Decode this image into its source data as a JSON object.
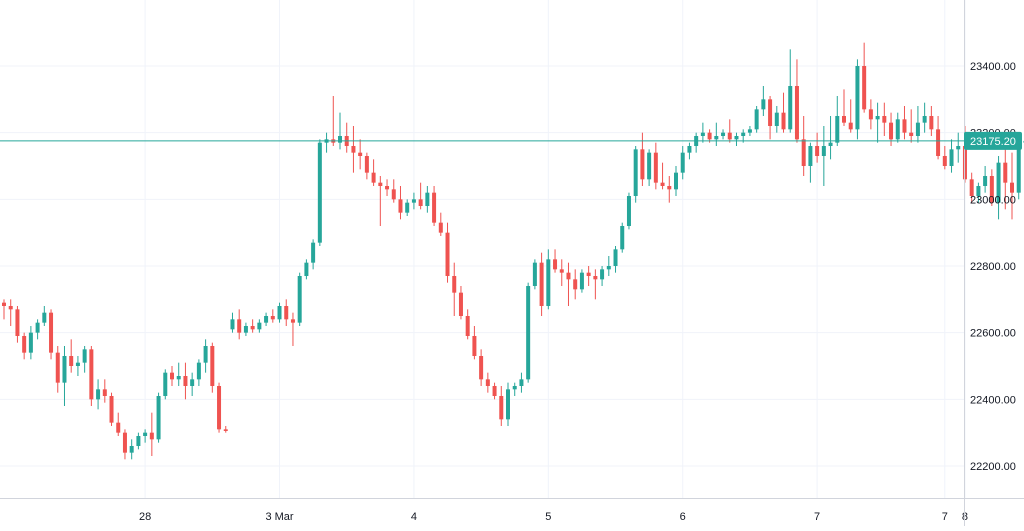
{
  "colors": {
    "up": "#26a69a",
    "down": "#ef5350",
    "grid": "#f0f3fa",
    "axis_text": "#131722",
    "price_line": "#26a69a",
    "badge_text": "#ffffff",
    "border": "#d1d4dc"
  },
  "chart_data": {
    "type": "candlestick",
    "title": "",
    "xlabel": "",
    "ylabel": "",
    "ylim": [
      22140,
      23540
    ],
    "y_ticks": [
      22200,
      22400,
      22600,
      22800,
      23000,
      23200,
      23400
    ],
    "y_tick_labels": [
      "22200.00",
      "22400.00",
      "22600.00",
      "22800.00",
      "23000.00",
      "23200.00",
      "23400.00"
    ],
    "x_tick_labels": [
      {
        "label": "28",
        "t": 21
      },
      {
        "label": "3 Mar",
        "t": 41
      },
      {
        "label": "4",
        "t": 61
      },
      {
        "label": "5",
        "t": 81
      },
      {
        "label": "6",
        "t": 101
      },
      {
        "label": "7",
        "t": 121
      },
      {
        "label": "7",
        "t": 140
      },
      {
        "label": "8",
        "t": 143
      }
    ],
    "last_price": 23175.2,
    "last_price_label": "23175.20",
    "grid": true,
    "candles": [
      [
        22690,
        22700,
        22640,
        22680
      ],
      [
        22680,
        22700,
        22620,
        22670
      ],
      [
        22670,
        22680,
        22570,
        22590
      ],
      [
        22590,
        22600,
        22520,
        22540
      ],
      [
        22540,
        22620,
        22520,
        22600
      ],
      [
        22600,
        22640,
        22580,
        22630
      ],
      [
        22630,
        22680,
        22620,
        22660
      ],
      [
        22660,
        22670,
        22520,
        22540
      ],
      [
        22540,
        22560,
        22420,
        22450
      ],
      [
        22450,
        22560,
        22380,
        22530
      ],
      [
        22530,
        22580,
        22480,
        22500
      ],
      [
        22500,
        22530,
        22470,
        22510
      ],
      [
        22510,
        22560,
        22480,
        22550
      ],
      [
        22550,
        22560,
        22380,
        22400
      ],
      [
        22400,
        22460,
        22370,
        22430
      ],
      [
        22430,
        22460,
        22390,
        22410
      ],
      [
        22410,
        22420,
        22320,
        22330
      ],
      [
        22330,
        22360,
        22290,
        22300
      ],
      [
        22300,
        22310,
        22220,
        22240
      ],
      [
        22240,
        22280,
        22220,
        22260
      ],
      [
        22260,
        22300,
        22250,
        22290
      ],
      [
        22290,
        22310,
        22270,
        22300
      ],
      [
        22300,
        22360,
        22230,
        22280
      ],
      [
        22280,
        22420,
        22270,
        22410
      ],
      [
        22410,
        22490,
        22400,
        22480
      ],
      [
        22480,
        22500,
        22440,
        22460
      ],
      [
        22460,
        22510,
        22440,
        22470
      ],
      [
        22470,
        22510,
        22400,
        22440
      ],
      [
        22440,
        22480,
        22410,
        22460
      ],
      [
        22460,
        22520,
        22440,
        22510
      ],
      [
        22510,
        22580,
        22480,
        22560
      ],
      [
        22560,
        22570,
        22420,
        22440
      ],
      [
        22440,
        22450,
        22300,
        22310
      ],
      [
        22310,
        22320,
        22300,
        22305
      ],
      [
        22610,
        22660,
        22600,
        22640
      ],
      [
        22640,
        22670,
        22580,
        22600
      ],
      [
        22600,
        22630,
        22590,
        22620
      ],
      [
        22620,
        22640,
        22600,
        22610
      ],
      [
        22610,
        22640,
        22600,
        22630
      ],
      [
        22630,
        22660,
        22620,
        22650
      ],
      [
        22650,
        22670,
        22630,
        22640
      ],
      [
        22640,
        22690,
        22630,
        22680
      ],
      [
        22680,
        22700,
        22620,
        22640
      ],
      [
        22640,
        22660,
        22560,
        22630
      ],
      [
        22630,
        22780,
        22620,
        22770
      ],
      [
        22770,
        22820,
        22760,
        22810
      ],
      [
        22810,
        22880,
        22790,
        22870
      ],
      [
        22870,
        23180,
        22860,
        23170
      ],
      [
        23170,
        23200,
        23140,
        23180
      ],
      [
        23180,
        23310,
        23160,
        23170
      ],
      [
        23170,
        23260,
        23150,
        23190
      ],
      [
        23190,
        23230,
        23140,
        23160
      ],
      [
        23160,
        23220,
        23080,
        23140
      ],
      [
        23140,
        23180,
        23090,
        23130
      ],
      [
        23130,
        23140,
        23060,
        23080
      ],
      [
        23080,
        23120,
        23040,
        23050
      ],
      [
        23050,
        23070,
        22920,
        23040
      ],
      [
        23040,
        23060,
        23010,
        23030
      ],
      [
        23030,
        23060,
        22990,
        23000
      ],
      [
        23000,
        23040,
        22940,
        22960
      ],
      [
        22960,
        23000,
        22950,
        22990
      ],
      [
        22990,
        23020,
        22970,
        23000
      ],
      [
        23000,
        23050,
        22970,
        22980
      ],
      [
        22980,
        23040,
        22960,
        23020
      ],
      [
        23020,
        23040,
        22920,
        22930
      ],
      [
        22930,
        22960,
        22890,
        22900
      ],
      [
        22900,
        22930,
        22750,
        22770
      ],
      [
        22770,
        22810,
        22650,
        22720
      ],
      [
        22720,
        22740,
        22640,
        22650
      ],
      [
        22650,
        22670,
        22580,
        22590
      ],
      [
        22590,
        22620,
        22520,
        22530
      ],
      [
        22530,
        22550,
        22440,
        22460
      ],
      [
        22460,
        22480,
        22420,
        22440
      ],
      [
        22440,
        22450,
        22400,
        22410
      ],
      [
        22410,
        22440,
        22320,
        22340
      ],
      [
        22340,
        22450,
        22320,
        22430
      ],
      [
        22430,
        22450,
        22410,
        22440
      ],
      [
        22440,
        22480,
        22420,
        22460
      ],
      [
        22460,
        22750,
        22450,
        22740
      ],
      [
        22740,
        22820,
        22730,
        22810
      ],
      [
        22810,
        22840,
        22650,
        22680
      ],
      [
        22680,
        22850,
        22670,
        22820
      ],
      [
        22820,
        22850,
        22780,
        22790
      ],
      [
        22790,
        22820,
        22740,
        22780
      ],
      [
        22780,
        22810,
        22680,
        22760
      ],
      [
        22760,
        22790,
        22700,
        22730
      ],
      [
        22730,
        22790,
        22720,
        22780
      ],
      [
        22780,
        22800,
        22740,
        22770
      ],
      [
        22770,
        22790,
        22700,
        22760
      ],
      [
        22760,
        22800,
        22740,
        22790
      ],
      [
        22790,
        22830,
        22770,
        22800
      ],
      [
        22800,
        22860,
        22780,
        22850
      ],
      [
        22850,
        22930,
        22840,
        22920
      ],
      [
        22920,
        23020,
        22910,
        23010
      ],
      [
        23010,
        23160,
        22990,
        23150
      ],
      [
        23150,
        23200,
        23040,
        23060
      ],
      [
        23060,
        23150,
        23040,
        23140
      ],
      [
        23140,
        23170,
        23030,
        23050
      ],
      [
        23050,
        23110,
        23030,
        23040
      ],
      [
        23040,
        23070,
        22990,
        23030
      ],
      [
        23030,
        23100,
        23010,
        23080
      ],
      [
        23080,
        23160,
        23060,
        23140
      ],
      [
        23140,
        23170,
        23120,
        23160
      ],
      [
        23160,
        23200,
        23140,
        23190
      ],
      [
        23190,
        23230,
        23170,
        23200
      ],
      [
        23200,
        23210,
        23170,
        23180
      ],
      [
        23180,
        23230,
        23160,
        23190
      ],
      [
        23190,
        23210,
        23180,
        23200
      ],
      [
        23200,
        23240,
        23170,
        23180
      ],
      [
        23180,
        23200,
        23160,
        23190
      ],
      [
        23190,
        23210,
        23170,
        23200
      ],
      [
        23200,
        23220,
        23190,
        23210
      ],
      [
        23210,
        23280,
        23200,
        23270
      ],
      [
        23270,
        23340,
        23250,
        23300
      ],
      [
        23300,
        23310,
        23180,
        23220
      ],
      [
        23220,
        23280,
        23200,
        23260
      ],
      [
        23260,
        23320,
        23200,
        23210
      ],
      [
        23210,
        23450,
        23200,
        23340
      ],
      [
        23340,
        23420,
        23170,
        23180
      ],
      [
        23180,
        23250,
        23070,
        23100
      ],
      [
        23100,
        23170,
        23050,
        23160
      ],
      [
        23160,
        23200,
        23110,
        23130
      ],
      [
        23130,
        23220,
        23040,
        23160
      ],
      [
        23160,
        23250,
        23120,
        23170
      ],
      [
        23170,
        23310,
        23160,
        23250
      ],
      [
        23250,
        23330,
        23220,
        23230
      ],
      [
        23230,
        23300,
        23200,
        23210
      ],
      [
        23210,
        23420,
        23180,
        23400
      ],
      [
        23400,
        23470,
        23260,
        23270
      ],
      [
        23270,
        23300,
        23210,
        23240
      ],
      [
        23240,
        23290,
        23170,
        23250
      ],
      [
        23250,
        23290,
        23190,
        23230
      ],
      [
        23230,
        23260,
        23160,
        23180
      ],
      [
        23180,
        23260,
        23170,
        23240
      ],
      [
        23240,
        23280,
        23180,
        23200
      ],
      [
        23200,
        23270,
        23170,
        23190
      ],
      [
        23190,
        23280,
        23170,
        23230
      ],
      [
        23230,
        23290,
        23200,
        23250
      ],
      [
        23250,
        23280,
        23190,
        23210
      ],
      [
        23210,
        23250,
        23120,
        23130
      ],
      [
        23130,
        23160,
        23090,
        23100
      ],
      [
        23100,
        23180,
        23080,
        23150
      ],
      [
        23150,
        23200,
        23110,
        23160
      ],
      [
        23160,
        23220,
        23050,
        23060
      ],
      [
        23060,
        23080,
        22990,
        23010
      ],
      [
        23010,
        23050,
        22990,
        23040
      ],
      [
        23040,
        23100,
        23020,
        23070
      ],
      [
        23070,
        23090,
        22980,
        22990
      ],
      [
        22990,
        23130,
        22940,
        23110
      ],
      [
        23110,
        23150,
        22970,
        23050
      ],
      [
        23050,
        23140,
        22940,
        23020
      ],
      [
        23020,
        23190,
        23000,
        23170
      ],
      [
        23170,
        23220,
        23160,
        23175.2
      ]
    ]
  }
}
